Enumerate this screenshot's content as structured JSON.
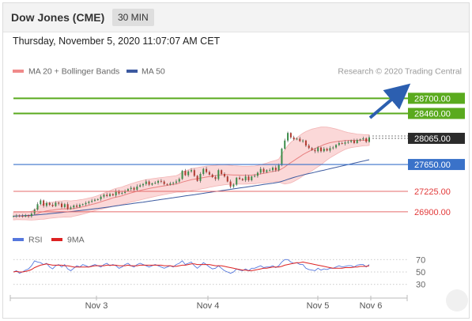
{
  "header": {
    "title": "Dow Jones (CME)",
    "timeframe": "30 MIN",
    "datetime": "Thursday, November 5, 2020 11:07:07 AM CET"
  },
  "legend": {
    "ma20_label": "MA 20 + Bollinger Bands",
    "ma50_label": "MA 50",
    "credit": "Research © 2020 Trading Central",
    "rsi_label": "RSI",
    "rsi_ma_label": "9MA"
  },
  "colors": {
    "candle_up": "#3c8c4a",
    "candle_down": "#b03a30",
    "ma20": "#e88080",
    "bollinger_fill": "#fbd8d8",
    "ma50": "#3c5aa0",
    "resistance": "#5aaa1e",
    "support": "#e56b6b",
    "pivot": "#3a72c9",
    "current": "#2b2b2b",
    "rsi": "#5577dd",
    "rsi_ma": "#dd2222",
    "arrow": "#2c5fb0"
  },
  "chart_data": [
    {
      "type": "candlestick",
      "title": "Dow Jones (CME)",
      "ylim": [
        26660,
        28980
      ],
      "x_labels": [
        "Nov 3",
        "Nov 4",
        "Nov 5",
        "Nov 6"
      ],
      "levels": [
        {
          "value": 28700,
          "label": "28700.00",
          "kind": "resistance"
        },
        {
          "value": 28460,
          "label": "28460.00",
          "kind": "resistance"
        },
        {
          "value": 28065,
          "label": "28065.00",
          "kind": "current"
        },
        {
          "value": 27650,
          "label": "27650.00",
          "kind": "pivot"
        },
        {
          "value": 27225,
          "label": "27225.00",
          "kind": "support"
        },
        {
          "value": 26900,
          "label": "26900.00",
          "kind": "support"
        }
      ],
      "close": [
        26830,
        26840,
        26835,
        26825,
        26845,
        26830,
        26870,
        26935,
        27020,
        27080,
        26995,
        27040,
        27010,
        26990,
        27045,
        27030,
        26975,
        27020,
        26945,
        26970,
        27000,
        26980,
        27010,
        27020,
        27040,
        27060,
        27075,
        27090,
        27100,
        27140,
        27170,
        27150,
        27180,
        27160,
        27230,
        27190,
        27200,
        27230,
        27260,
        27280,
        27250,
        27300,
        27320,
        27340,
        27380,
        27330,
        27350,
        27360,
        27390,
        27380,
        27340,
        27330,
        27350,
        27360,
        27380,
        27420,
        27550,
        27480,
        27540,
        27560,
        27470,
        27390,
        27500,
        27580,
        27530,
        27490,
        27450,
        27420,
        27560,
        27500,
        27460,
        27380,
        27300,
        27330,
        27440,
        27420,
        27400,
        27460,
        27400,
        27460,
        27470,
        27520,
        27580,
        27530,
        27560,
        27560,
        27600,
        27560,
        27640,
        27900,
        28030,
        28150,
        28080,
        28050,
        28060,
        28020,
        28030,
        27950,
        27910,
        27880,
        27860,
        27920,
        27860,
        27900,
        27870,
        27910,
        27920,
        27960,
        27990,
        27980,
        28000,
        28010,
        28030,
        27990,
        28040,
        28050,
        28065,
        28010,
        28080
      ],
      "ma20": [
        26830,
        26835,
        26835,
        26833,
        26835,
        26834,
        26839,
        26852,
        26871,
        26892,
        26902,
        26914,
        26922,
        26927,
        26935,
        26941,
        26943,
        26947,
        26946,
        26945,
        26954,
        26961,
        26970,
        26980,
        26991,
        27004,
        27017,
        27029,
        27043,
        27058,
        27074,
        27088,
        27104,
        27121,
        27131,
        27142,
        27153,
        27170,
        27185,
        27199,
        27212,
        27225,
        27237,
        27249,
        27260,
        27270,
        27279,
        27287,
        27296,
        27304,
        27311,
        27319,
        27326,
        27334,
        27342,
        27354,
        27371,
        27383,
        27396,
        27409,
        27418,
        27425,
        27434,
        27443,
        27451,
        27458,
        27465,
        27471,
        27480,
        27486,
        27489,
        27489,
        27487,
        27483,
        27483,
        27481,
        27479,
        27480,
        27481,
        27483,
        27486,
        27493,
        27502,
        27509,
        27518,
        27529,
        27539,
        27547,
        27556,
        27582,
        27611,
        27648,
        27680,
        27711,
        27743,
        27774,
        27806,
        27834,
        27858,
        27881,
        27902,
        27924,
        27944,
        27965,
        27982,
        27995,
        28004,
        28013,
        28020,
        28025,
        28029,
        28032,
        28033,
        28033,
        28032,
        28034,
        28035,
        28035,
        28038
      ],
      "ma50": [
        26830,
        26832,
        26835,
        26837,
        26840,
        26842,
        26845,
        26848,
        26852,
        26856,
        26861,
        26865,
        26870,
        26875,
        26879,
        26884,
        26889,
        26894,
        26898,
        26903,
        26908,
        26913,
        26918,
        26924,
        26930,
        26936,
        26942,
        26948,
        26954,
        26960,
        26966,
        26972,
        26979,
        26986,
        26993,
        27000,
        27007,
        27014,
        27021,
        27028,
        27035,
        27041,
        27047,
        27053,
        27060,
        27067,
        27074,
        27081,
        27088,
        27095,
        27102,
        27109,
        27116,
        27123,
        27130,
        27137,
        27144,
        27151,
        27158,
        27165,
        27172,
        27179,
        27186,
        27193,
        27200,
        27207,
        27214,
        27221,
        27228,
        27235,
        27242,
        27249,
        27256,
        27263,
        27270,
        27277,
        27284,
        27291,
        27298,
        27305,
        27312,
        27319,
        27326,
        27333,
        27340,
        27347,
        27354,
        27361,
        27368,
        27382,
        27398,
        27415,
        27430,
        27445,
        27459,
        27472,
        27484,
        27495,
        27506,
        27517,
        27528,
        27539,
        27550,
        27561,
        27572,
        27583,
        27594,
        27605,
        27616,
        27627,
        27638,
        27649,
        27660,
        27671,
        27682,
        27693,
        27704,
        27715,
        27726
      ],
      "bollinger_width": [
        60,
        60,
        60,
        60,
        62,
        64,
        70,
        80,
        95,
        110,
        120,
        125,
        125,
        125,
        128,
        130,
        130,
        130,
        130,
        128,
        125,
        122,
        120,
        118,
        116,
        114,
        112,
        112,
        114,
        118,
        122,
        126,
        130,
        135,
        140,
        140,
        140,
        142,
        144,
        146,
        148,
        150,
        150,
        150,
        150,
        148,
        146,
        144,
        142,
        140,
        138,
        136,
        134,
        132,
        132,
        140,
        160,
        165,
        170,
        175,
        175,
        175,
        175,
        175,
        175,
        170,
        168,
        165,
        165,
        165,
        160,
        155,
        150,
        148,
        145,
        143,
        142,
        140,
        140,
        140,
        140,
        142,
        145,
        150,
        155,
        160,
        165,
        170,
        180,
        230,
        270,
        300,
        320,
        330,
        335,
        338,
        340,
        338,
        335,
        330,
        320,
        310,
        300,
        280,
        260,
        240,
        220,
        200,
        180,
        160,
        140,
        125,
        115,
        108,
        100,
        95,
        90,
        88,
        85
      ]
    },
    {
      "type": "line",
      "title": "RSI",
      "ylim": [
        22,
        78
      ],
      "ticks": [
        70,
        50,
        30
      ],
      "rsi": [
        50,
        52,
        48,
        50,
        53,
        55,
        60,
        68,
        66,
        65,
        62,
        64,
        58,
        55,
        60,
        62,
        58,
        62,
        55,
        52,
        56,
        60,
        58,
        62,
        60,
        58,
        60,
        62,
        60,
        58,
        62,
        64,
        60,
        62,
        60,
        56,
        58,
        62,
        64,
        60,
        58,
        62,
        64,
        62,
        60,
        58,
        60,
        62,
        60,
        58,
        56,
        58,
        60,
        58,
        62,
        64,
        68,
        62,
        64,
        66,
        60,
        56,
        60,
        65,
        62,
        58,
        55,
        56,
        60,
        56,
        52,
        50,
        48,
        50,
        55,
        53,
        52,
        55,
        52,
        56,
        56,
        58,
        60,
        57,
        58,
        58,
        60,
        57,
        60,
        66,
        70,
        70,
        66,
        64,
        65,
        62,
        62,
        56,
        54,
        53,
        52,
        56,
        53,
        55,
        54,
        56,
        56,
        58,
        60,
        58,
        59,
        60,
        60,
        58,
        61,
        62,
        62,
        58,
        62
      ],
      "rsi_ma": [
        50,
        51,
        50,
        50,
        51,
        52,
        54,
        57,
        59,
        61,
        62,
        63,
        62,
        61,
        61,
        61,
        61,
        60,
        60,
        59,
        58,
        58,
        58,
        58,
        58,
        58,
        59,
        60,
        60,
        60,
        60,
        61,
        61,
        61,
        61,
        60,
        60,
        60,
        61,
        60,
        60,
        60,
        61,
        61,
        61,
        61,
        61,
        61,
        61,
        61,
        60,
        60,
        60,
        59,
        59,
        60,
        61,
        61,
        62,
        63,
        63,
        62,
        62,
        62,
        62,
        62,
        61,
        60,
        60,
        60,
        59,
        58,
        57,
        56,
        55,
        54,
        53,
        53,
        52,
        52,
        53,
        54,
        55,
        56,
        56,
        57,
        58,
        58,
        58,
        59,
        61,
        62,
        63,
        64,
        65,
        65,
        66,
        65,
        64,
        63,
        62,
        61,
        60,
        59,
        58,
        57,
        56,
        56,
        56,
        56,
        57,
        57,
        57,
        58,
        58,
        59,
        59,
        59,
        60
      ]
    }
  ]
}
